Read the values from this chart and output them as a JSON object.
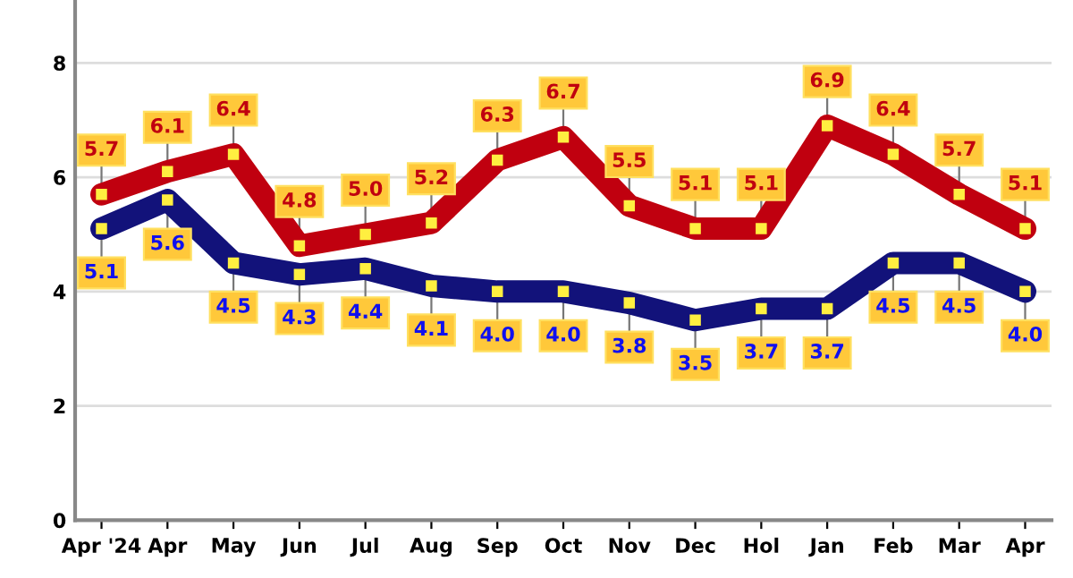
{
  "chart_data": {
    "type": "line",
    "categories": [
      "Apr '24",
      "Apr",
      "May",
      "Jun",
      "Jul",
      "Aug",
      "Sep",
      "Oct",
      "Nov",
      "Dec",
      "Hol",
      "Jan",
      "Feb",
      "Mar",
      "Apr"
    ],
    "series": [
      {
        "color": "#c0000f",
        "values": [
          5.7,
          6.1,
          6.4,
          4.8,
          5.0,
          5.2,
          6.3,
          6.7,
          5.5,
          5.1,
          5.1,
          6.9,
          6.4,
          5.7,
          5.1
        ],
        "value_labels": [
          "5.7",
          "6.1",
          "6.4",
          "4.8",
          "5.0",
          "5.2",
          "6.3",
          "6.7",
          "5.5",
          "5.1",
          "5.1",
          "6.9",
          "6.4",
          "5.7",
          "5.1"
        ]
      },
      {
        "color": "#12127a",
        "values": [
          5.1,
          5.6,
          4.5,
          4.3,
          4.4,
          4.1,
          4.0,
          4.0,
          3.8,
          3.5,
          3.7,
          3.7,
          4.5,
          4.5,
          4.0
        ],
        "value_labels": [
          "5.1",
          "5.6",
          "4.5",
          "4.3",
          "4.4",
          "4.1",
          "4.0",
          "4.0",
          "3.8",
          "3.5",
          "3.7",
          "3.7",
          "4.5",
          "4.5",
          "4.0"
        ]
      }
    ],
    "ylim": [
      0,
      9.1
    ],
    "yticks": [
      0,
      2,
      4,
      6,
      8
    ],
    "grid": "y",
    "marker": "square",
    "line_style": "solid",
    "legend": false
  }
}
